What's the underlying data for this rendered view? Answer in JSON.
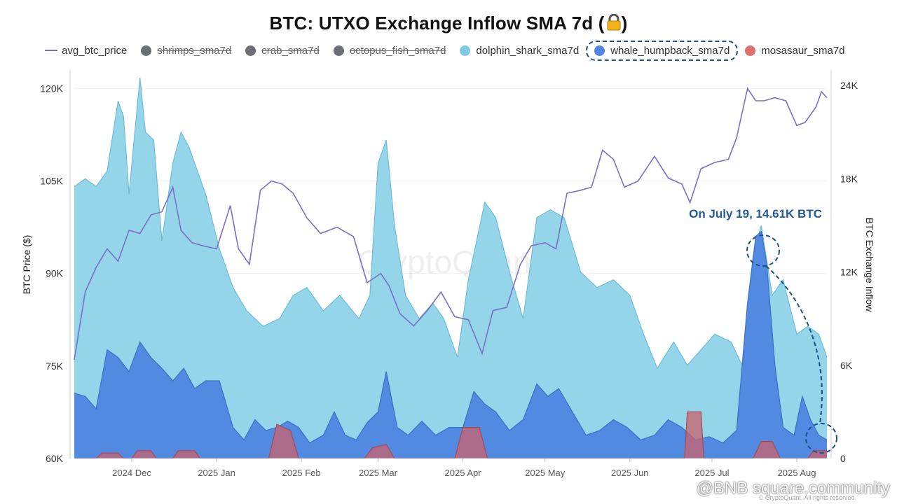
{
  "title": "BTC: UTXO Exchange Inflow SMA 7d (",
  "title_suffix": ")",
  "title_icon": "lock-icon",
  "legend": [
    {
      "label": "avg_btc_price",
      "kind": "line",
      "color": "#7b6fc6",
      "visible": true
    },
    {
      "label": "shrimps_sma7d",
      "kind": "dot",
      "color": "#6c6e78",
      "visible": false
    },
    {
      "label": "crab_sma7d",
      "kind": "dot",
      "color": "#6c6e78",
      "visible": false
    },
    {
      "label": "octopus_fish_sma7d",
      "kind": "dot",
      "color": "#6c6e78",
      "visible": false
    },
    {
      "label": "dolphin_shark_sma7d",
      "kind": "dot",
      "color": "#7ecbe3",
      "visible": true
    },
    {
      "label": "whale_humpback_sma7d",
      "kind": "dot",
      "color": "#4e86e0",
      "visible": true,
      "highlighted": true
    },
    {
      "label": "mosasaur_sma7d",
      "kind": "dot",
      "color": "#e07070",
      "visible": true
    }
  ],
  "annotation": "On July 19, 14.61K BTC",
  "watermark": "CryptoQuant",
  "footer_brand": "@BNB square.community",
  "copyright": "© CryptoQuant. All rights reserved.",
  "chart_data": {
    "type": "area",
    "title": "BTC: UTXO Exchange Inflow SMA 7d",
    "ylabel_left": "BTC Price ($)",
    "ylabel_right": "BTC Exchange Inflow",
    "ylim_left": [
      60000,
      123000
    ],
    "ylim_right": [
      0,
      25000
    ],
    "yticks_left": [
      "60K",
      "75K",
      "90K",
      "105K",
      "120K"
    ],
    "yticks_left_values": [
      60000,
      75000,
      90000,
      105000,
      120000
    ],
    "yticks_right": [
      "0",
      "6K",
      "12K",
      "18K",
      "24K"
    ],
    "yticks_right_values": [
      0,
      6000,
      12000,
      18000,
      24000
    ],
    "x_range": [
      "2024-11-10",
      "2025-08-12"
    ],
    "xticks": [
      {
        "date": "2024-12-01",
        "label": "2024 Dec"
      },
      {
        "date": "2025-01-01",
        "label": "2025 Jan"
      },
      {
        "date": "2025-02-01",
        "label": "2025 Feb"
      },
      {
        "date": "2025-03-01",
        "label": "2025 Mar"
      },
      {
        "date": "2025-04-01",
        "label": "2025 Apr"
      },
      {
        "date": "2025-05-01",
        "label": "2025 May"
      },
      {
        "date": "2025-06-01",
        "label": "2025 Jun"
      },
      {
        "date": "2025-07-01",
        "label": "2025 Jul"
      },
      {
        "date": "2025-08-01",
        "label": "2025 Aug"
      }
    ],
    "series": [
      {
        "name": "dolphin_shark_sma7d",
        "axis": "right",
        "kind": "area",
        "color": "#8fd3e8",
        "points": [
          [
            "2024-11-10",
            17500
          ],
          [
            "2024-11-14",
            18000
          ],
          [
            "2024-11-18",
            17500
          ],
          [
            "2024-11-22",
            18500
          ],
          [
            "2024-11-26",
            23000
          ],
          [
            "2024-11-28",
            22000
          ],
          [
            "2024-11-30",
            17000
          ],
          [
            "2024-12-04",
            24500
          ],
          [
            "2024-12-06",
            21000
          ],
          [
            "2024-12-09",
            20500
          ],
          [
            "2024-12-12",
            14000
          ],
          [
            "2024-12-16",
            19000
          ],
          [
            "2024-12-19",
            21000
          ],
          [
            "2024-12-22",
            20000
          ],
          [
            "2024-12-25",
            18500
          ],
          [
            "2024-12-28",
            17000
          ],
          [
            "2025-01-02",
            13500
          ],
          [
            "2025-01-07",
            11000
          ],
          [
            "2025-01-12",
            9500
          ],
          [
            "2025-01-18",
            8500
          ],
          [
            "2025-01-24",
            9000
          ],
          [
            "2025-01-29",
            10500
          ],
          [
            "2025-02-03",
            11000
          ],
          [
            "2025-02-09",
            9500
          ],
          [
            "2025-02-15",
            10500
          ],
          [
            "2025-02-22",
            9000
          ],
          [
            "2025-02-26",
            10500
          ],
          [
            "2025-03-01",
            19000
          ],
          [
            "2025-03-04",
            20500
          ],
          [
            "2025-03-07",
            15000
          ],
          [
            "2025-03-11",
            10500
          ],
          [
            "2025-03-16",
            9000
          ],
          [
            "2025-03-21",
            10000
          ],
          [
            "2025-03-25",
            9000
          ],
          [
            "2025-03-30",
            6500
          ],
          [
            "2025-04-03",
            11500
          ],
          [
            "2025-04-09",
            16500
          ],
          [
            "2025-04-13",
            15500
          ],
          [
            "2025-04-18",
            12000
          ],
          [
            "2025-04-23",
            9000
          ],
          [
            "2025-04-28",
            15500
          ],
          [
            "2025-05-03",
            16000
          ],
          [
            "2025-05-08",
            15500
          ],
          [
            "2025-05-14",
            12000
          ],
          [
            "2025-05-20",
            11000
          ],
          [
            "2025-05-26",
            11500
          ],
          [
            "2025-06-01",
            10500
          ],
          [
            "2025-06-06",
            8000
          ],
          [
            "2025-06-11",
            5800
          ],
          [
            "2025-06-17",
            7500
          ],
          [
            "2025-06-22",
            6000
          ],
          [
            "2025-06-27",
            7000
          ],
          [
            "2025-07-02",
            8000
          ],
          [
            "2025-07-08",
            7500
          ],
          [
            "2025-07-12",
            6000
          ],
          [
            "2025-07-16",
            13000
          ],
          [
            "2025-07-19",
            15000
          ],
          [
            "2025-07-23",
            10500
          ],
          [
            "2025-07-27",
            11500
          ],
          [
            "2025-08-01",
            8000
          ],
          [
            "2025-08-05",
            8500
          ],
          [
            "2025-08-09",
            8000
          ],
          [
            "2025-08-12",
            6500
          ]
        ]
      },
      {
        "name": "whale_humpback_sma7d",
        "axis": "right",
        "kind": "area",
        "color": "#4e86e0",
        "points": [
          [
            "2024-11-10",
            4200
          ],
          [
            "2024-11-14",
            4000
          ],
          [
            "2024-11-18",
            3200
          ],
          [
            "2024-11-22",
            7000
          ],
          [
            "2024-11-26",
            6500
          ],
          [
            "2024-11-30",
            5600
          ],
          [
            "2024-12-04",
            7500
          ],
          [
            "2024-12-08",
            6500
          ],
          [
            "2024-12-12",
            5800
          ],
          [
            "2024-12-16",
            5000
          ],
          [
            "2024-12-20",
            5800
          ],
          [
            "2024-12-24",
            4500
          ],
          [
            "2024-12-28",
            5000
          ],
          [
            "2025-01-02",
            5000
          ],
          [
            "2025-01-07",
            2000
          ],
          [
            "2025-01-11",
            1200
          ],
          [
            "2025-01-15",
            2500
          ],
          [
            "2025-01-19",
            1800
          ],
          [
            "2025-01-23",
            2000
          ],
          [
            "2025-01-27",
            2400
          ],
          [
            "2025-01-31",
            2000
          ],
          [
            "2025-02-04",
            1000
          ],
          [
            "2025-02-09",
            1500
          ],
          [
            "2025-02-13",
            3000
          ],
          [
            "2025-02-17",
            1500
          ],
          [
            "2025-02-21",
            1200
          ],
          [
            "2025-02-25",
            2300
          ],
          [
            "2025-03-01",
            3000
          ],
          [
            "2025-03-04",
            5600
          ],
          [
            "2025-03-08",
            2000
          ],
          [
            "2025-03-12",
            1500
          ],
          [
            "2025-03-17",
            2400
          ],
          [
            "2025-03-22",
            1500
          ],
          [
            "2025-03-27",
            2000
          ],
          [
            "2025-04-01",
            2000
          ],
          [
            "2025-04-05",
            4300
          ],
          [
            "2025-04-09",
            3500
          ],
          [
            "2025-04-13",
            3000
          ],
          [
            "2025-04-18",
            1800
          ],
          [
            "2025-04-23",
            2500
          ],
          [
            "2025-04-28",
            4800
          ],
          [
            "2025-05-02",
            4000
          ],
          [
            "2025-05-06",
            4500
          ],
          [
            "2025-05-11",
            3000
          ],
          [
            "2025-05-16",
            1500
          ],
          [
            "2025-05-21",
            1800
          ],
          [
            "2025-05-26",
            2500
          ],
          [
            "2025-05-31",
            2000
          ],
          [
            "2025-06-05",
            1200
          ],
          [
            "2025-06-10",
            1500
          ],
          [
            "2025-06-15",
            2500
          ],
          [
            "2025-06-20",
            2000
          ],
          [
            "2025-06-25",
            1200
          ],
          [
            "2025-06-30",
            1400
          ],
          [
            "2025-07-05",
            1000
          ],
          [
            "2025-07-10",
            1800
          ],
          [
            "2025-07-14",
            10000
          ],
          [
            "2025-07-17",
            14300
          ],
          [
            "2025-07-19",
            14610
          ],
          [
            "2025-07-21",
            12500
          ],
          [
            "2025-07-24",
            6000
          ],
          [
            "2025-07-27",
            2000
          ],
          [
            "2025-07-31",
            1500
          ],
          [
            "2025-08-03",
            4000
          ],
          [
            "2025-08-06",
            2500
          ],
          [
            "2025-08-09",
            1500
          ],
          [
            "2025-08-12",
            1200
          ]
        ]
      },
      {
        "name": "mosasaur_sma7d",
        "axis": "right",
        "kind": "area",
        "color": "#c9606b",
        "points": [
          [
            "2024-11-10",
            0
          ],
          [
            "2024-11-18",
            0
          ],
          [
            "2024-11-20",
            350
          ],
          [
            "2024-11-26",
            350
          ],
          [
            "2024-11-28",
            0
          ],
          [
            "2024-12-01",
            0
          ],
          [
            "2024-12-03",
            500
          ],
          [
            "2024-12-08",
            500
          ],
          [
            "2024-12-10",
            0
          ],
          [
            "2024-12-16",
            0
          ],
          [
            "2024-12-18",
            500
          ],
          [
            "2024-12-24",
            500
          ],
          [
            "2024-12-26",
            0
          ],
          [
            "2025-01-20",
            0
          ],
          [
            "2025-01-23",
            2200
          ],
          [
            "2025-01-28",
            1800
          ],
          [
            "2025-01-31",
            0
          ],
          [
            "2025-02-24",
            0
          ],
          [
            "2025-02-27",
            700
          ],
          [
            "2025-03-04",
            900
          ],
          [
            "2025-03-07",
            0
          ],
          [
            "2025-03-29",
            0
          ],
          [
            "2025-04-01",
            2000
          ],
          [
            "2025-04-07",
            2000
          ],
          [
            "2025-04-10",
            0
          ],
          [
            "2025-06-21",
            0
          ],
          [
            "2025-06-22",
            3000
          ],
          [
            "2025-06-27",
            3000
          ],
          [
            "2025-06-28",
            0
          ],
          [
            "2025-07-16",
            0
          ],
          [
            "2025-07-19",
            1100
          ],
          [
            "2025-07-23",
            1100
          ],
          [
            "2025-07-26",
            0
          ],
          [
            "2025-08-05",
            0
          ],
          [
            "2025-08-07",
            500
          ],
          [
            "2025-08-12",
            500
          ]
        ]
      },
      {
        "name": "avg_btc_price",
        "axis": "left",
        "kind": "line",
        "color": "#7b6fc6",
        "points": [
          [
            "2024-11-10",
            76000
          ],
          [
            "2024-11-14",
            87000
          ],
          [
            "2024-11-18",
            91000
          ],
          [
            "2024-11-22",
            94000
          ],
          [
            "2024-11-26",
            92000
          ],
          [
            "2024-11-30",
            97000
          ],
          [
            "2024-12-04",
            96500
          ],
          [
            "2024-12-08",
            99500
          ],
          [
            "2024-12-12",
            100000
          ],
          [
            "2024-12-16",
            104000
          ],
          [
            "2024-12-19",
            97000
          ],
          [
            "2024-12-23",
            95000
          ],
          [
            "2024-12-27",
            94500
          ],
          [
            "2025-01-01",
            94000
          ],
          [
            "2025-01-06",
            101000
          ],
          [
            "2025-01-09",
            94000
          ],
          [
            "2025-01-13",
            91500
          ],
          [
            "2025-01-17",
            103500
          ],
          [
            "2025-01-21",
            105000
          ],
          [
            "2025-01-25",
            104500
          ],
          [
            "2025-01-29",
            103000
          ],
          [
            "2025-02-03",
            99000
          ],
          [
            "2025-02-08",
            96500
          ],
          [
            "2025-02-14",
            97500
          ],
          [
            "2025-02-20",
            96000
          ],
          [
            "2025-02-25",
            88500
          ],
          [
            "2025-03-02",
            90000
          ],
          [
            "2025-03-05",
            88000
          ],
          [
            "2025-03-09",
            83500
          ],
          [
            "2025-03-14",
            81500
          ],
          [
            "2025-03-19",
            84000
          ],
          [
            "2025-03-24",
            87000
          ],
          [
            "2025-03-29",
            83000
          ],
          [
            "2025-04-03",
            82500
          ],
          [
            "2025-04-08",
            77000
          ],
          [
            "2025-04-12",
            84000
          ],
          [
            "2025-04-17",
            84500
          ],
          [
            "2025-04-22",
            91500
          ],
          [
            "2025-04-26",
            94500
          ],
          [
            "2025-05-01",
            95000
          ],
          [
            "2025-05-05",
            94000
          ],
          [
            "2025-05-09",
            103000
          ],
          [
            "2025-05-14",
            103500
          ],
          [
            "2025-05-18",
            104000
          ],
          [
            "2025-05-22",
            110000
          ],
          [
            "2025-05-26",
            108500
          ],
          [
            "2025-05-30",
            104000
          ],
          [
            "2025-06-04",
            105000
          ],
          [
            "2025-06-10",
            109000
          ],
          [
            "2025-06-15",
            105500
          ],
          [
            "2025-06-20",
            104500
          ],
          [
            "2025-06-23",
            101500
          ],
          [
            "2025-06-27",
            107000
          ],
          [
            "2025-07-02",
            108000
          ],
          [
            "2025-07-07",
            108500
          ],
          [
            "2025-07-10",
            112000
          ],
          [
            "2025-07-14",
            120000
          ],
          [
            "2025-07-17",
            118000
          ],
          [
            "2025-07-20",
            118000
          ],
          [
            "2025-07-24",
            118500
          ],
          [
            "2025-07-28",
            118000
          ],
          [
            "2025-08-01",
            114000
          ],
          [
            "2025-08-04",
            114500
          ],
          [
            "2025-08-08",
            117000
          ],
          [
            "2025-08-10",
            119500
          ],
          [
            "2025-08-12",
            118500
          ]
        ]
      }
    ]
  }
}
